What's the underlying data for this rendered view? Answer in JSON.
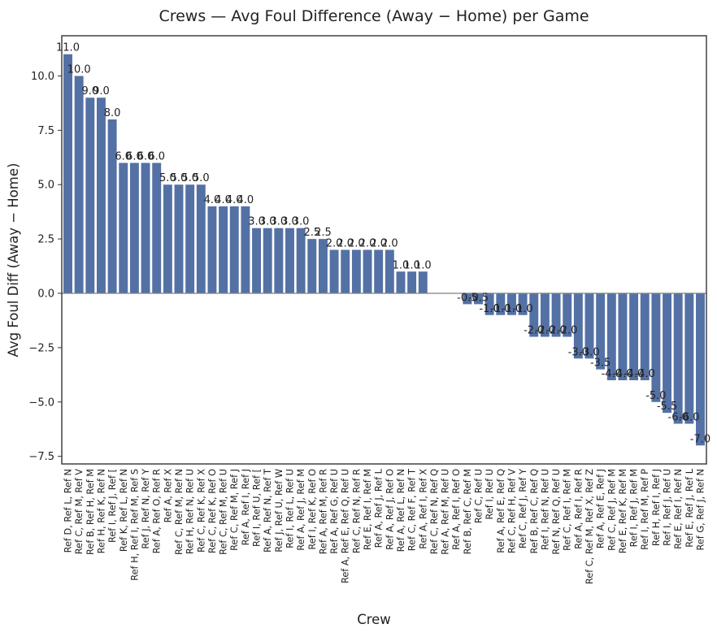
{
  "chart_data": {
    "type": "bar",
    "title": "Crews — Avg Foul Difference (Away − Home) per Game",
    "xlabel": "Crew",
    "ylabel": "Avg Foul Diff (Away − Home)",
    "ylim": [
      -7.85,
      11.85
    ],
    "yticks": [
      -7.5,
      -5.0,
      -2.5,
      0.0,
      2.5,
      5.0,
      7.5,
      10.0
    ],
    "ytick_labels": [
      "−7.5",
      "−5.0",
      "−2.5",
      "0.0",
      "2.5",
      "5.0",
      "7.5",
      "10.0"
    ],
    "bar_color": "#5471a5",
    "zero_line_color": "#808080",
    "grid": false,
    "categories": [
      "Ref D, Ref L, Ref N",
      "Ref C, Ref M, Ref V",
      "Ref B, Ref H, Ref M",
      "Ref H, Ref K, Ref N",
      "Ref I, Ref J, Ref [",
      "Ref K, Ref L, Ref N",
      "Ref H, Ref I, Ref M, Ref S",
      "Ref J, Ref N, Ref Y",
      "Ref A, Ref O, Ref R",
      "Ref A, Ref X",
      "Ref C, Ref M, Ref N",
      "Ref H, Ref N, Ref U",
      "Ref C, Ref K, Ref X",
      "Ref C, Ref K, Ref O",
      "Ref C, Ref M, Ref U",
      "Ref C, Ref M, Ref J",
      "Ref A, Ref I, Ref J",
      "Ref I, Ref U, Ref [",
      "Ref A, Ref N, Ref T",
      "Ref J, Ref U, Ref W",
      "Ref I, Ref L, Ref U",
      "Ref A, Ref J, Ref M",
      "Ref I, Ref K, Ref O",
      "Ref A, Ref M, Ref R",
      "Ref A, Ref G, Ref U",
      "Ref A, Ref E, Ref Q, Ref U",
      "Ref C, Ref N, Ref R",
      "Ref E, Ref I, Ref M",
      "Ref A, Ref J, Ref L",
      "Ref A, Ref J, Ref O",
      "Ref A, Ref L, Ref N",
      "Ref C, Ref F, Ref T",
      "Ref A, Ref I, Ref X",
      "Ref C, Ref N, Ref Q",
      "Ref A, Ref M, Ref U",
      "Ref A, Ref I, Ref O",
      "Ref B, Ref C, Ref M",
      "Ref C, Ref U",
      "Ref I, Ref U",
      "Ref A, Ref E, Ref Q",
      "Ref C, Ref H, Ref V",
      "Ref C, Ref J, Ref Y",
      "Ref B, Ref C, Ref Q",
      "Ref I, Ref N, Ref U",
      "Ref N, Ref Q, Ref U",
      "Ref C, Ref I, Ref M",
      "Ref A, Ref I, Ref R",
      "Ref C, Ref M, Ref X, Ref Z",
      "Ref A, Ref E, Ref J",
      "Ref C, Ref J, Ref M",
      "Ref E, Ref K, Ref M",
      "Ref I, Ref J, Ref M",
      "Ref I, Ref M, Ref P",
      "Ref H, Ref I, Ref J",
      "Ref I, Ref J, Ref U",
      "Ref E, Ref I, Ref N",
      "Ref E, Ref J, Ref L",
      "Ref G, Ref J, Ref N"
    ],
    "values": [
      11.0,
      10.0,
      9.0,
      9.0,
      8.0,
      6.0,
      6.0,
      6.0,
      6.0,
      5.0,
      5.0,
      5.0,
      5.0,
      4.0,
      4.0,
      4.0,
      4.0,
      3.0,
      3.0,
      3.0,
      3.0,
      3.0,
      2.5,
      2.5,
      2.0,
      2.0,
      2.0,
      2.0,
      2.0,
      2.0,
      1.0,
      1.0,
      1.0,
      0.0,
      0.0,
      0.0,
      -0.5,
      -0.5,
      -1.0,
      -1.0,
      -1.0,
      -1.0,
      -2.0,
      -2.0,
      -2.0,
      -2.0,
      -3.0,
      -3.0,
      -3.5,
      -4.0,
      -4.0,
      -4.0,
      -4.0,
      -5.0,
      -5.5,
      -6.0,
      -6.0,
      -7.0
    ],
    "data_labels": [
      "11.0",
      "10.0",
      "9.0",
      "9.0",
      "8.0",
      "6.0",
      "6.0",
      "6.0",
      "6.0",
      "5.0",
      "5.0",
      "5.0",
      "5.0",
      "4.0",
      "4.0",
      "4.0",
      "4.0",
      "3.0",
      "3.0",
      "3.0",
      "3.0",
      "3.0",
      "2.5",
      "2.5",
      "2.0",
      "2.0",
      "2.0",
      "2.0",
      "2.0",
      "2.0",
      "1.0",
      "1.0",
      "1.0",
      "",
      "",
      "",
      "-0.5",
      "-0.5",
      "-1.0",
      "-1.0",
      "-1.0",
      "-1.0",
      "-2.0",
      "-2.0",
      "-2.0",
      "-2.0",
      "-3.0",
      "-3.0",
      "-3.5",
      "-4.0",
      "-4.0",
      "-4.0",
      "-4.0",
      "-5.0",
      "-5.5",
      "-6.0",
      "-6.0",
      "-7.0"
    ]
  }
}
